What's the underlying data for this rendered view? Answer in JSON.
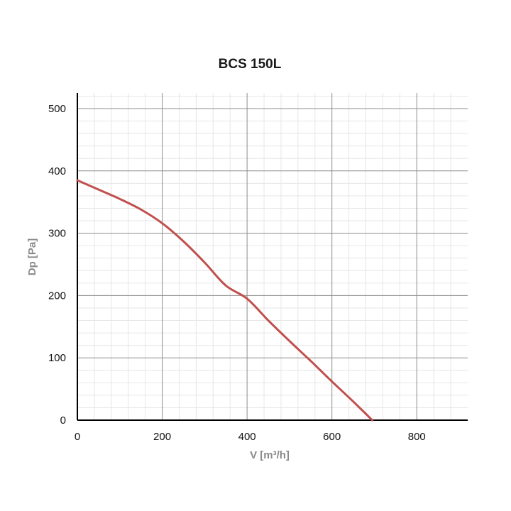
{
  "chart_data": {
    "type": "line",
    "title": "BCS 150L",
    "xlabel": "V [m³/h]",
    "ylabel": "Dp [Pa]",
    "xlim": [
      0,
      920
    ],
    "ylim": [
      0,
      500
    ],
    "x_ticks": [
      "0",
      "200",
      "400",
      "600",
      "800"
    ],
    "y_ticks": [
      "0",
      "100",
      "200",
      "300",
      "400",
      "500"
    ],
    "grid": true,
    "series": [
      {
        "color": "#c0504d",
        "x": [
          0,
          50,
          100,
          150,
          200,
          250,
          300,
          350,
          400,
          450,
          500,
          550,
          600,
          650,
          695
        ],
        "y": [
          385,
          370,
          355,
          338,
          316,
          287,
          253,
          216,
          195,
          160,
          127,
          95,
          62,
          30,
          0
        ]
      }
    ]
  }
}
